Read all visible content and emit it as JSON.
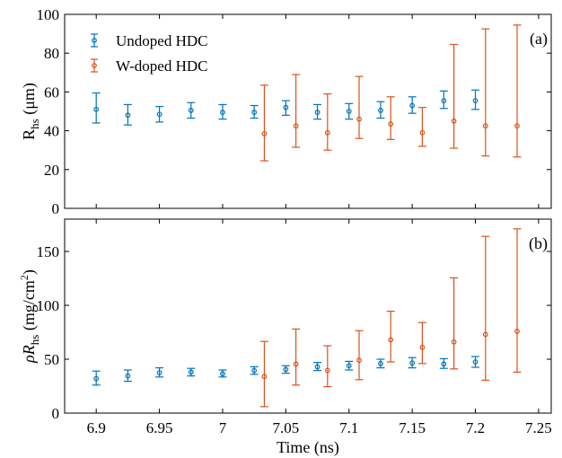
{
  "chart_data": [
    {
      "type": "scatter",
      "panel_label": "(a)",
      "ylabel_main": "R",
      "ylabel_sub": "hs",
      "ylabel_unit": " (μm)",
      "xlim": [
        6.875,
        7.26
      ],
      "ylim": [
        0,
        100
      ],
      "yticks": [
        0,
        20,
        40,
        60,
        80,
        100
      ],
      "grid": false,
      "legend": "top-left",
      "series": [
        {
          "name": "Undoped HDC",
          "color": "#0072BD",
          "points": [
            {
              "x": 6.9,
              "y": 51,
              "lo": 44,
              "hi": 59.5
            },
            {
              "x": 6.925,
              "y": 48,
              "lo": 43,
              "hi": 53.5
            },
            {
              "x": 6.95,
              "y": 48.5,
              "lo": 44.5,
              "hi": 52.5
            },
            {
              "x": 6.975,
              "y": 50.5,
              "lo": 46.5,
              "hi": 54.5
            },
            {
              "x": 7.0,
              "y": 49.5,
              "lo": 46,
              "hi": 53.5
            },
            {
              "x": 7.025,
              "y": 49.5,
              "lo": 46.5,
              "hi": 53
            },
            {
              "x": 7.05,
              "y": 52,
              "lo": 48,
              "hi": 55.5
            },
            {
              "x": 7.075,
              "y": 49.5,
              "lo": 46,
              "hi": 53.5
            },
            {
              "x": 7.1,
              "y": 50,
              "lo": 46,
              "hi": 54
            },
            {
              "x": 7.125,
              "y": 50.5,
              "lo": 46.5,
              "hi": 55
            },
            {
              "x": 7.15,
              "y": 53,
              "lo": 49,
              "hi": 57.5
            },
            {
              "x": 7.175,
              "y": 55.5,
              "lo": 51.5,
              "hi": 60.5
            },
            {
              "x": 7.2,
              "y": 55.5,
              "lo": 51,
              "hi": 61
            }
          ]
        },
        {
          "name": "W-doped HDC",
          "color": "#D95319",
          "points": [
            {
              "x": 7.033,
              "y": 38.5,
              "lo": 24.5,
              "hi": 63.5
            },
            {
              "x": 7.058,
              "y": 42.5,
              "lo": 31.5,
              "hi": 69
            },
            {
              "x": 7.083,
              "y": 39,
              "lo": 30,
              "hi": 59
            },
            {
              "x": 7.108,
              "y": 46,
              "lo": 36,
              "hi": 68
            },
            {
              "x": 7.133,
              "y": 43.5,
              "lo": 35.5,
              "hi": 57.5
            },
            {
              "x": 7.158,
              "y": 39,
              "lo": 32,
              "hi": 52
            },
            {
              "x": 7.183,
              "y": 45,
              "lo": 31,
              "hi": 84.5
            },
            {
              "x": 7.208,
              "y": 42.5,
              "lo": 27,
              "hi": 92.5
            },
            {
              "x": 7.233,
              "y": 42.5,
              "lo": 26.5,
              "hi": 94.5
            }
          ]
        }
      ]
    },
    {
      "type": "scatter",
      "panel_label": "(b)",
      "ylabel_main": "ρR",
      "ylabel_sub": "hs",
      "ylabel_unit": " (mg/cm",
      "ylabel_sup": "2",
      "ylabel_close": ")",
      "xlim": [
        6.875,
        7.26
      ],
      "ylim": [
        0,
        180
      ],
      "yticks": [
        0,
        50,
        100,
        150
      ],
      "xticks": [
        "6.9",
        "6.95",
        "7",
        "7.05",
        "7.1",
        "7.15",
        "7.2",
        "7.25"
      ],
      "xlabel": "Time (ns)",
      "grid": false,
      "series": [
        {
          "name": "Undoped HDC",
          "color": "#0072BD",
          "points": [
            {
              "x": 6.9,
              "y": 32,
              "lo": 26,
              "hi": 39
            },
            {
              "x": 6.925,
              "y": 34.5,
              "lo": 29.5,
              "hi": 40
            },
            {
              "x": 6.95,
              "y": 37.5,
              "lo": 33.5,
              "hi": 42
            },
            {
              "x": 6.975,
              "y": 38,
              "lo": 34.5,
              "hi": 41.5
            },
            {
              "x": 7.0,
              "y": 36.5,
              "lo": 33.5,
              "hi": 40
            },
            {
              "x": 7.025,
              "y": 39.5,
              "lo": 36,
              "hi": 43
            },
            {
              "x": 7.05,
              "y": 40.5,
              "lo": 37,
              "hi": 44
            },
            {
              "x": 7.075,
              "y": 43,
              "lo": 39.5,
              "hi": 47
            },
            {
              "x": 7.1,
              "y": 44,
              "lo": 40,
              "hi": 48
            },
            {
              "x": 7.125,
              "y": 46,
              "lo": 42,
              "hi": 50
            },
            {
              "x": 7.15,
              "y": 46.5,
              "lo": 42,
              "hi": 51.5
            },
            {
              "x": 7.175,
              "y": 45.5,
              "lo": 41.5,
              "hi": 50.5
            },
            {
              "x": 7.2,
              "y": 47.5,
              "lo": 42.5,
              "hi": 52.5
            }
          ]
        },
        {
          "name": "W-doped HDC",
          "color": "#D95319",
          "points": [
            {
              "x": 7.033,
              "y": 34,
              "lo": 6,
              "hi": 66.5
            },
            {
              "x": 7.058,
              "y": 45.5,
              "lo": 26,
              "hi": 78
            },
            {
              "x": 7.083,
              "y": 39.5,
              "lo": 24.5,
              "hi": 62.5
            },
            {
              "x": 7.108,
              "y": 49,
              "lo": 31,
              "hi": 76.5
            },
            {
              "x": 7.133,
              "y": 68,
              "lo": 47.5,
              "hi": 94.5
            },
            {
              "x": 7.158,
              "y": 61,
              "lo": 46,
              "hi": 84
            },
            {
              "x": 7.183,
              "y": 66,
              "lo": 41,
              "hi": 125.5
            },
            {
              "x": 7.208,
              "y": 73,
              "lo": 30.5,
              "hi": 164
            },
            {
              "x": 7.233,
              "y": 76,
              "lo": 38,
              "hi": 171
            }
          ]
        }
      ]
    }
  ]
}
